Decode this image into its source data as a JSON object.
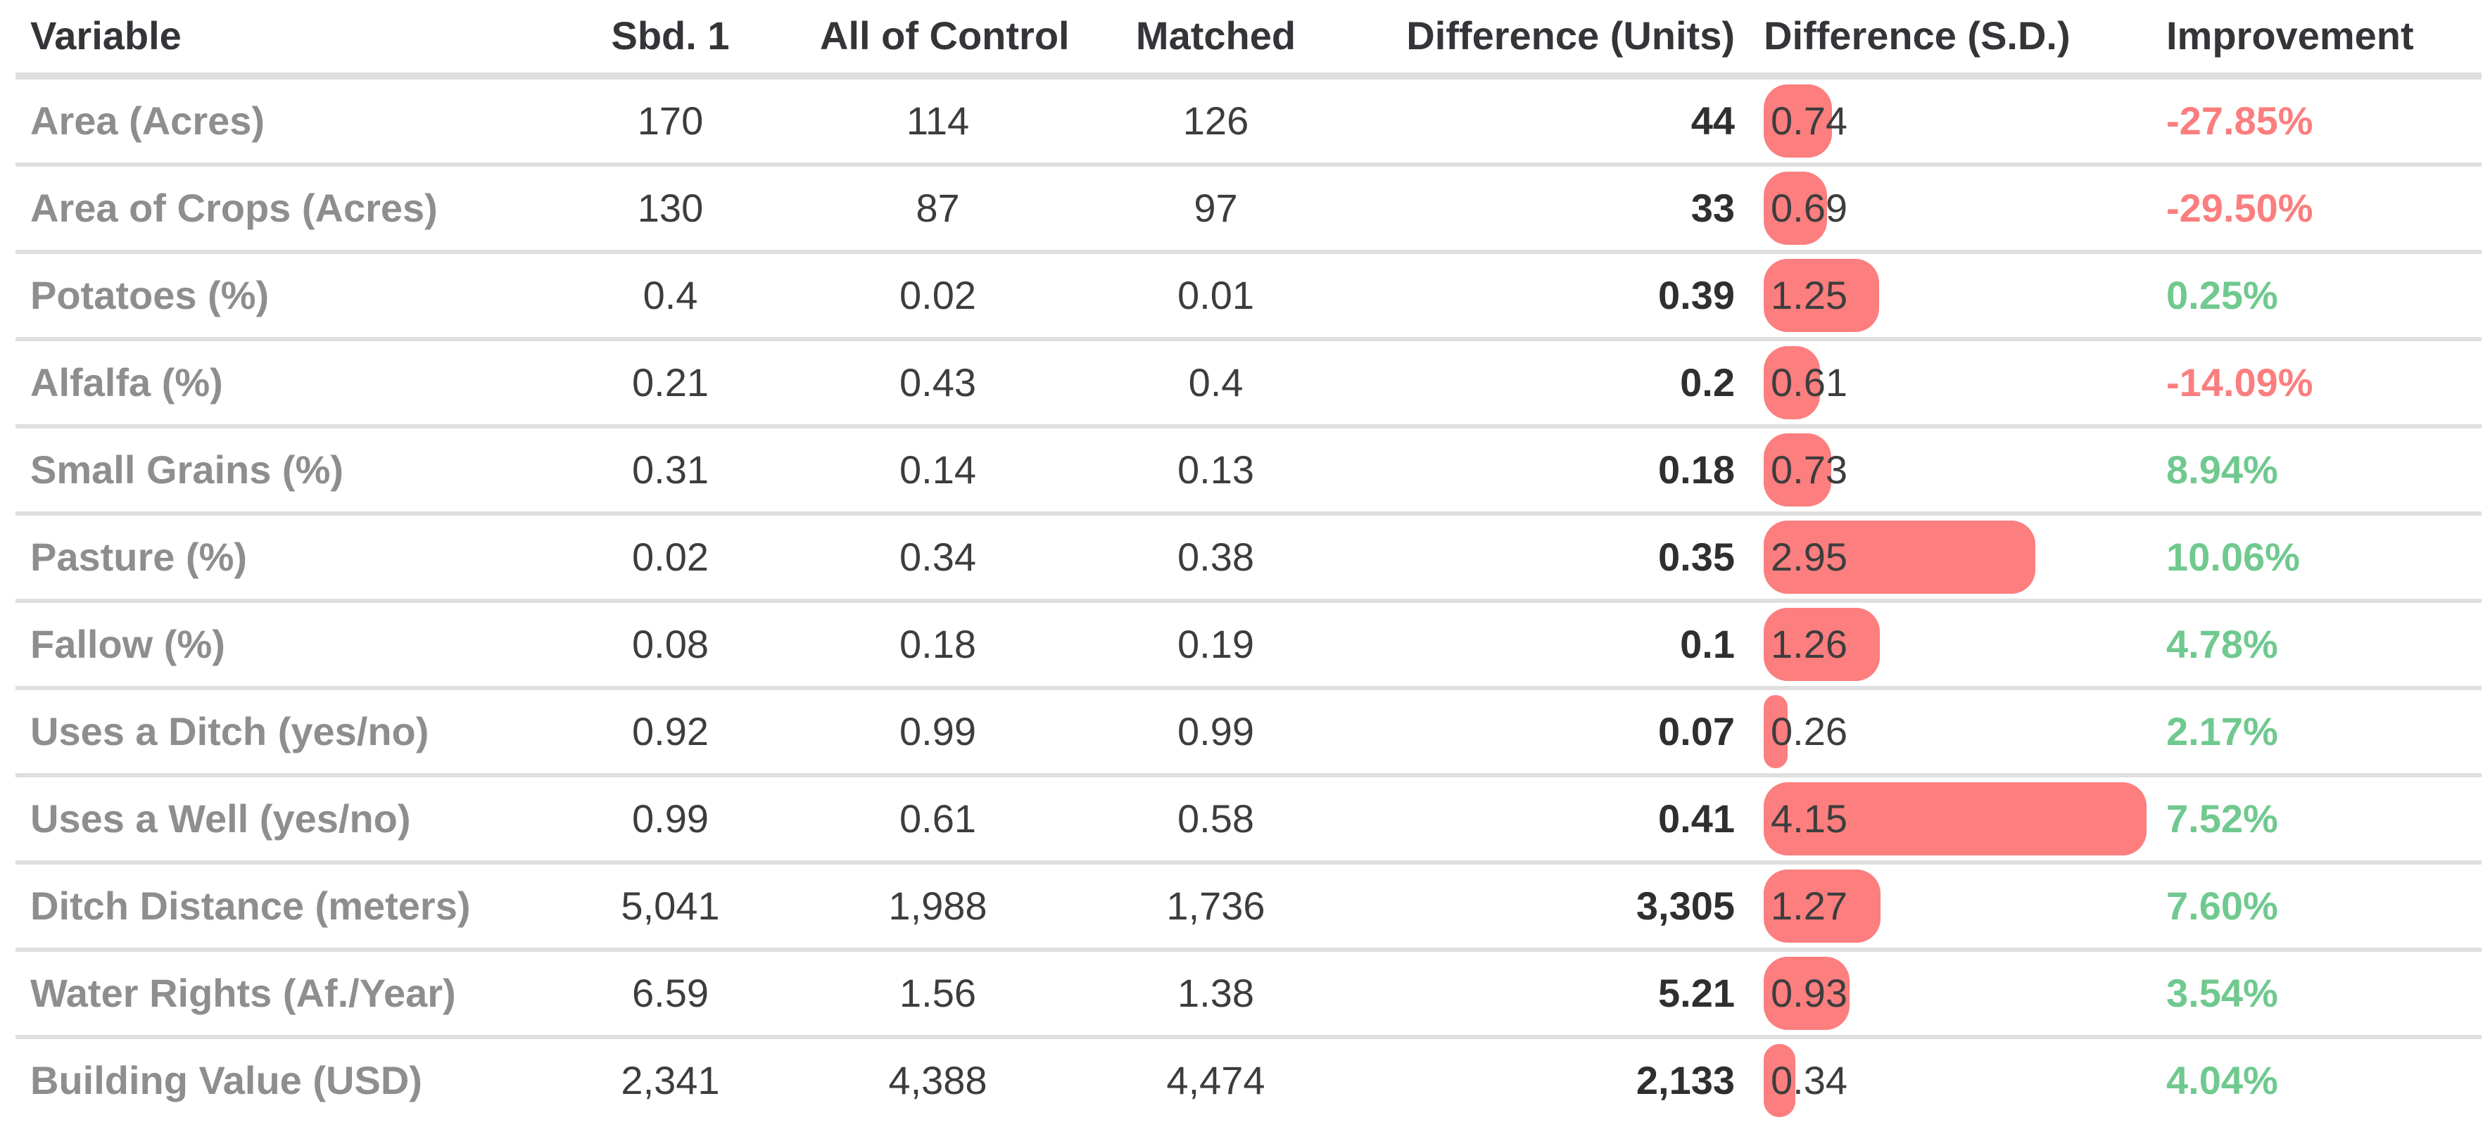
{
  "table": {
    "columns": [
      {
        "key": "variable",
        "label": "Variable"
      },
      {
        "key": "sbd1",
        "label": "Sbd. 1"
      },
      {
        "key": "control",
        "label": "All of Control"
      },
      {
        "key": "matched",
        "label": "Matched"
      },
      {
        "key": "diff_units",
        "label": "Difference (Units)"
      },
      {
        "key": "diff_sd",
        "label": "Difference (S.D.)"
      },
      {
        "key": "improvement",
        "label": "Improvement"
      }
    ],
    "rows": [
      {
        "variable": "Area (Acres)",
        "sbd1": "170",
        "control": "114",
        "matched": "126",
        "diff_units": "44",
        "diff_sd": "0.74",
        "diff_sd_value": 0.74,
        "improvement": "-27.85%",
        "improvement_direction": "negative"
      },
      {
        "variable": "Area of Crops (Acres)",
        "sbd1": "130",
        "control": "87",
        "matched": "97",
        "diff_units": "33",
        "diff_sd": "0.69",
        "diff_sd_value": 0.69,
        "improvement": "-29.50%",
        "improvement_direction": "negative"
      },
      {
        "variable": "Potatoes (%)",
        "sbd1": "0.4",
        "control": "0.02",
        "matched": "0.01",
        "diff_units": "0.39",
        "diff_sd": "1.25",
        "diff_sd_value": 1.25,
        "improvement": "0.25%",
        "improvement_direction": "positive"
      },
      {
        "variable": "Alfalfa (%)",
        "sbd1": "0.21",
        "control": "0.43",
        "matched": "0.4",
        "diff_units": "0.2",
        "diff_sd": "0.61",
        "diff_sd_value": 0.61,
        "improvement": "-14.09%",
        "improvement_direction": "negative"
      },
      {
        "variable": "Small Grains (%)",
        "sbd1": "0.31",
        "control": "0.14",
        "matched": "0.13",
        "diff_units": "0.18",
        "diff_sd": "0.73",
        "diff_sd_value": 0.73,
        "improvement": "8.94%",
        "improvement_direction": "positive"
      },
      {
        "variable": "Pasture (%)",
        "sbd1": "0.02",
        "control": "0.34",
        "matched": "0.38",
        "diff_units": "0.35",
        "diff_sd": "2.95",
        "diff_sd_value": 2.95,
        "improvement": "10.06%",
        "improvement_direction": "positive"
      },
      {
        "variable": "Fallow (%)",
        "sbd1": "0.08",
        "control": "0.18",
        "matched": "0.19",
        "diff_units": "0.1",
        "diff_sd": "1.26",
        "diff_sd_value": 1.26,
        "improvement": "4.78%",
        "improvement_direction": "positive"
      },
      {
        "variable": "Uses a Ditch (yes/no)",
        "sbd1": "0.92",
        "control": "0.99",
        "matched": "0.99",
        "diff_units": "0.07",
        "diff_sd": "0.26",
        "diff_sd_value": 0.26,
        "improvement": "2.17%",
        "improvement_direction": "positive"
      },
      {
        "variable": "Uses a Well (yes/no)",
        "sbd1": "0.99",
        "control": "0.61",
        "matched": "0.58",
        "diff_units": "0.41",
        "diff_sd": "4.15",
        "diff_sd_value": 4.15,
        "improvement": "7.52%",
        "improvement_direction": "positive"
      },
      {
        "variable": "Ditch Distance (meters)",
        "sbd1": "5,041",
        "control": "1,988",
        "matched": "1,736",
        "diff_units": "3,305",
        "diff_sd": "1.27",
        "diff_sd_value": 1.27,
        "improvement": "7.60%",
        "improvement_direction": "positive"
      },
      {
        "variable": "Water Rights (Af./Year)",
        "sbd1": "6.59",
        "control": "1.56",
        "matched": "1.38",
        "diff_units": "5.21",
        "diff_sd": "0.93",
        "diff_sd_value": 0.93,
        "improvement": "3.54%",
        "improvement_direction": "positive"
      },
      {
        "variable": "Building Value (USD)",
        "sbd1": "2,341",
        "control": "4,388",
        "matched": "4,474",
        "diff_units": "2,133",
        "diff_sd": "0.34",
        "diff_sd_value": 0.34,
        "improvement": "4.04%",
        "improvement_direction": "positive"
      }
    ]
  },
  "chart_data": {
    "type": "table",
    "title": "",
    "columns": [
      "Variable",
      "Sbd. 1",
      "All of Control",
      "Matched",
      "Difference (Units)",
      "Difference (S.D.)",
      "Improvement"
    ],
    "rows": [
      [
        "Area (Acres)",
        170,
        114,
        126,
        44,
        0.74,
        "-27.85%"
      ],
      [
        "Area of Crops (Acres)",
        130,
        87,
        97,
        33,
        0.69,
        "-29.50%"
      ],
      [
        "Potatoes (%)",
        0.4,
        0.02,
        0.01,
        0.39,
        1.25,
        "0.25%"
      ],
      [
        "Alfalfa (%)",
        0.21,
        0.43,
        0.4,
        0.2,
        0.61,
        "-14.09%"
      ],
      [
        "Small Grains (%)",
        0.31,
        0.14,
        0.13,
        0.18,
        0.73,
        "8.94%"
      ],
      [
        "Pasture (%)",
        0.02,
        0.34,
        0.38,
        0.35,
        2.95,
        "10.06%"
      ],
      [
        "Fallow (%)",
        0.08,
        0.18,
        0.19,
        0.1,
        1.26,
        "4.78%"
      ],
      [
        "Uses a Ditch (yes/no)",
        0.92,
        0.99,
        0.99,
        0.07,
        0.26,
        "2.17%"
      ],
      [
        "Uses a Well (yes/no)",
        0.99,
        0.61,
        0.58,
        0.41,
        4.15,
        "7.52%"
      ],
      [
        "Ditch Distance (meters)",
        "5,041",
        "1,988",
        "1,736",
        "3,305",
        1.27,
        "7.60%"
      ],
      [
        "Water Rights (Af./Year)",
        6.59,
        1.56,
        1.38,
        5.21,
        0.93,
        "3.54%"
      ],
      [
        "Building Value (USD)",
        "2,341",
        "4,388",
        "4,474",
        "2,133",
        0.34,
        "4.04%"
      ]
    ],
    "notes": "Difference (S.D.) column shows an inline horizontal bar proportional to the value; Improvement is green when positive, salmon-red when negative."
  },
  "colors": {
    "bar": "#fc7e7e",
    "improvement_negative": "#fb7e7e",
    "improvement_positive": "#70c98f",
    "row_label": "#8e8e8e",
    "header_text": "#333538",
    "value_text": "#3d3d3d",
    "divider": "#dfdfdf"
  }
}
